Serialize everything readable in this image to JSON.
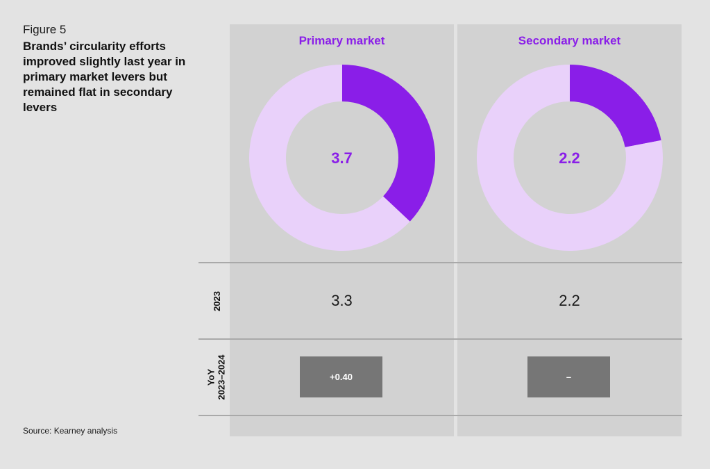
{
  "figure": {
    "label": "Figure 5",
    "title": "Brands’ circularity efforts improved slightly last year in primary market levers but remained flat in secondary levers",
    "source": "Source: Kearney analysis"
  },
  "row_labels": {
    "year": "2023",
    "yoy_line1": "YoY",
    "yoy_line2": "2023–2024"
  },
  "colors": {
    "accent": "#8a1ee8",
    "donut_remainder": "#e9d1fa",
    "yoy_box": "#767676"
  },
  "chart_data": [
    {
      "type": "pie",
      "title": "Primary market",
      "center_label": "3.7",
      "value": 3.7,
      "max": 10,
      "year_2023": "3.3",
      "yoy": "+0.40"
    },
    {
      "type": "pie",
      "title": "Secondary market",
      "center_label": "2.2",
      "value": 2.2,
      "max": 10,
      "year_2023": "2.2",
      "yoy": "–"
    }
  ]
}
